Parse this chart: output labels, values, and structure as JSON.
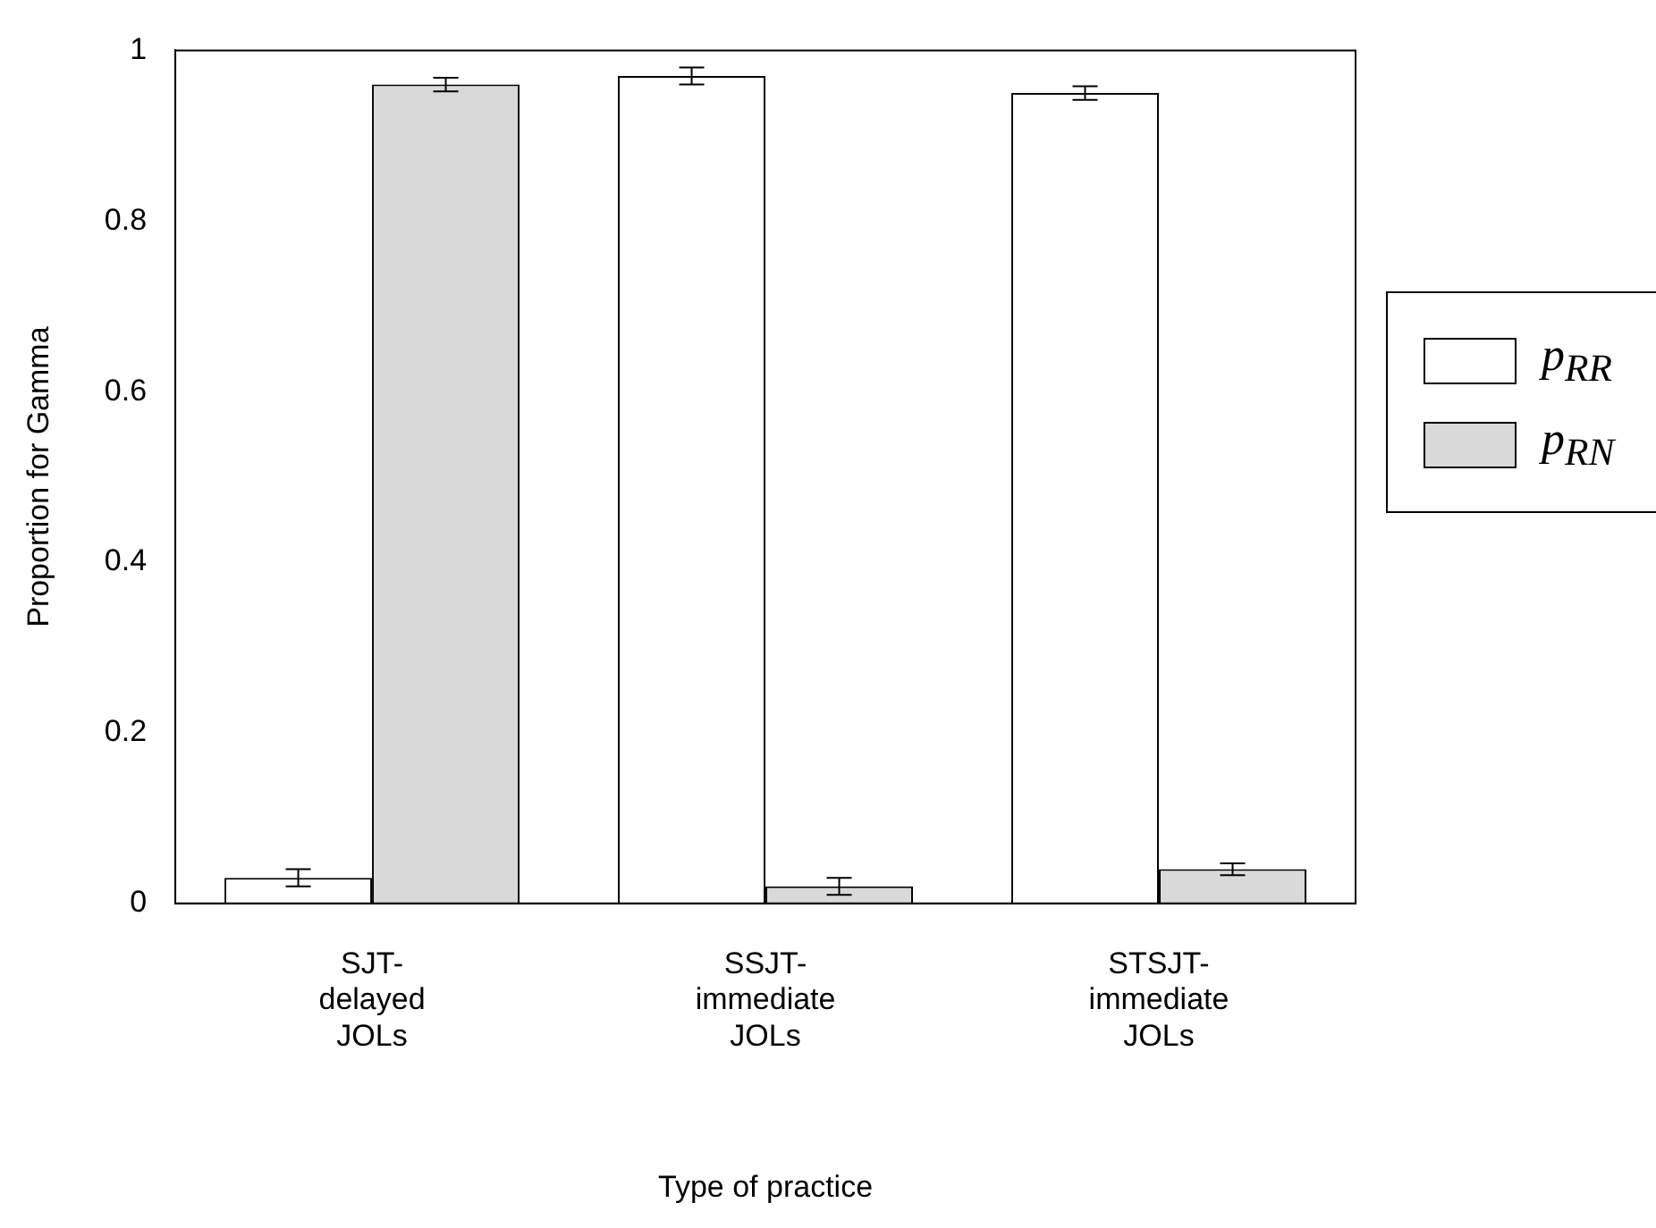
{
  "chart_data": {
    "type": "bar",
    "xlabel": "Type of practice",
    "ylabel": "Proportion for Gamma",
    "categories": [
      "SJT-delayed JOLs",
      "SSJT-immediate JOLs",
      "STSJT-immediate JOLs"
    ],
    "series": [
      {
        "name": "p$_{RR}$",
        "color": "#ffffff",
        "values": [
          0.03,
          0.97,
          0.95
        ],
        "errors": [
          0.01,
          0.01,
          0.008
        ]
      },
      {
        "name": "p$_{RN}$",
        "color": "#d9d9d9",
        "values": [
          0.96,
          0.02,
          0.04
        ],
        "errors": [
          0.008,
          0.01,
          0.007
        ]
      }
    ],
    "ylim": [
      0,
      1
    ],
    "yticks": [
      0,
      0.2,
      0.4,
      0.6,
      0.8,
      1
    ],
    "grid": false,
    "legend": "right"
  }
}
